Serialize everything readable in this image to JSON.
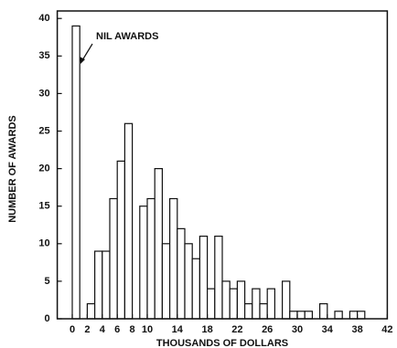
{
  "chart_data": {
    "type": "histogram",
    "annotation": "NIL AWARDS",
    "x_label": "THOUSANDS OF DOLLARS",
    "y_label": "NUMBER OF AWARDS",
    "bins": [
      0,
      1,
      2,
      3,
      4,
      5,
      6,
      7,
      8,
      9,
      10,
      11,
      12,
      13,
      14,
      15,
      16,
      17,
      18,
      19,
      20,
      21,
      22,
      23,
      24,
      25,
      26,
      27,
      28,
      29,
      30,
      31,
      32,
      33,
      34,
      35,
      36,
      37,
      38,
      39
    ],
    "counts": [
      39,
      0,
      2,
      9,
      9,
      16,
      21,
      26,
      0,
      15,
      16,
      20,
      10,
      16,
      12,
      10,
      8,
      11,
      4,
      11,
      5,
      4,
      5,
      2,
      4,
      2,
      4,
      0,
      5,
      1,
      1,
      1,
      0,
      2,
      0,
      1,
      0,
      1,
      1
    ],
    "color": "#ffffff",
    "xlim": [
      -2,
      42
    ],
    "ylim": [
      0,
      41
    ],
    "xticks": [
      0,
      2,
      4,
      6,
      8,
      10,
      14,
      18,
      22,
      26,
      30,
      34,
      38,
      42
    ],
    "yticks": [
      0,
      5,
      10,
      15,
      20,
      25,
      30,
      35,
      40
    ]
  }
}
